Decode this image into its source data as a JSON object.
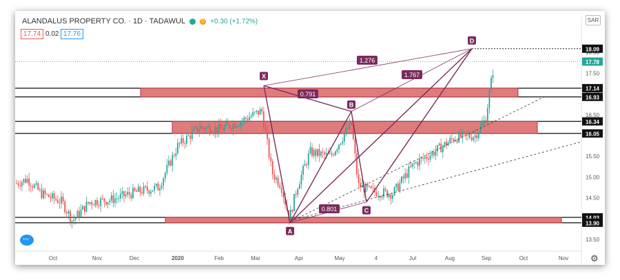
{
  "header": {
    "symbol": "ALANDALUS PROPERTY CO. · 1D · TADAWUL",
    "change": "+0.30 (+1.72%)",
    "bid": "17.74",
    "spread": "0.02",
    "ask": "17.76",
    "currency": "SAR",
    "dot_green": "#26a69a",
    "dot_orange": "#ff9800",
    "dot_letter": "D"
  },
  "colors": {
    "up": "#26a69a",
    "down": "#ef5350",
    "pattern": "#7b2a5c",
    "zone_fill": "#e07b7b",
    "zone_stroke": "#b23a48"
  },
  "chart_data": {
    "type": "candlestick",
    "x_ticks": [
      "Oct",
      "Nov",
      "Dec",
      "2020",
      "Feb",
      "Mar",
      "Apr",
      "May",
      "4",
      "Jul",
      "Aug",
      "Sep",
      "Oct",
      "Nov"
    ],
    "y_ticks": [
      13.5,
      14.0,
      14.5,
      15.0,
      15.5,
      16.0,
      16.5,
      17.0,
      17.5,
      18.0
    ],
    "y_range": [
      13.3,
      18.6
    ],
    "price_labels": [
      {
        "label": "18.09",
        "kind": "level"
      },
      {
        "label": "17.78",
        "kind": "current"
      },
      {
        "label": "17.14",
        "kind": "level"
      },
      {
        "label": "16.93",
        "kind": "level"
      },
      {
        "label": "16.34",
        "kind": "level"
      },
      {
        "label": "16.05",
        "kind": "level"
      },
      {
        "label": "14.03",
        "kind": "level"
      },
      {
        "label": "13.90",
        "kind": "level"
      }
    ],
    "zones": [
      {
        "top": 17.14,
        "bottom": 16.93
      },
      {
        "top": 16.34,
        "bottom": 16.05
      },
      {
        "top": 14.03,
        "bottom": 13.9
      }
    ],
    "harmonic_points": [
      {
        "label": "X",
        "date": "Mar",
        "price": 17.2
      },
      {
        "label": "A",
        "date": "Apr",
        "price": 13.9
      },
      {
        "label": "B",
        "date": "May",
        "price": 16.58
      },
      {
        "label": "C",
        "date": "May",
        "price": 14.4
      },
      {
        "label": "D",
        "date": "Sep",
        "price": 18.09
      }
    ],
    "ratios": [
      "1.276",
      "0.791",
      "1.767",
      "0.801"
    ]
  }
}
